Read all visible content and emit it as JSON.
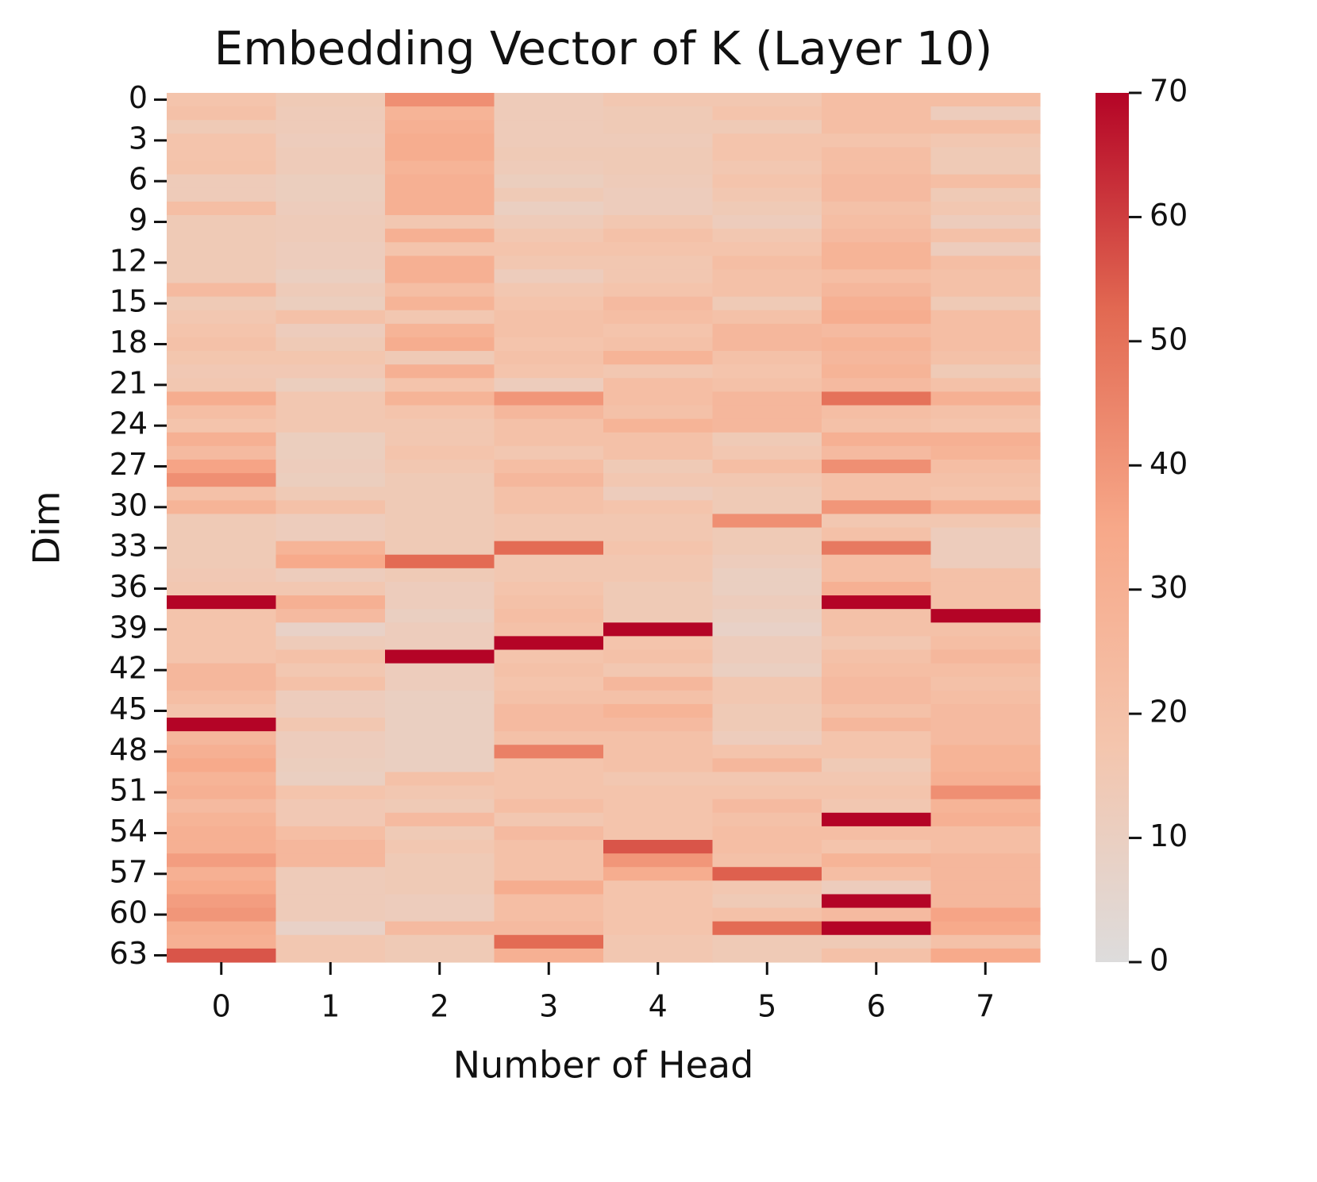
{
  "chart_data": {
    "type": "heatmap",
    "title": "Embedding Vector of K (Layer 10)",
    "x_label": "Number of Head",
    "y_label": "Dim",
    "x_categories": [
      0,
      1,
      2,
      3,
      4,
      5,
      6,
      7
    ],
    "y_categories": [
      0,
      null,
      null,
      3,
      null,
      null,
      6,
      null,
      null,
      9,
      null,
      null,
      12,
      null,
      null,
      15,
      null,
      null,
      18,
      null,
      null,
      21,
      null,
      null,
      24,
      null,
      null,
      27,
      null,
      null,
      30,
      null,
      null,
      33,
      null,
      null,
      36,
      null,
      null,
      39,
      null,
      null,
      42,
      null,
      null,
      45,
      null,
      null,
      48,
      null,
      null,
      51,
      null,
      null,
      54,
      null,
      null,
      57,
      null,
      null,
      60,
      null,
      null,
      63
    ],
    "values": [
      [
        18,
        20,
        14,
        18,
        18,
        19,
        13,
        13,
        22,
        14,
        14,
        14,
        14,
        14,
        24,
        14,
        16,
        18,
        20,
        17,
        15,
        16,
        32,
        22,
        18,
        30,
        24,
        36,
        42,
        20,
        28,
        14,
        14,
        14,
        14,
        15,
        16,
        70,
        18,
        18,
        18,
        18,
        26,
        26,
        22,
        18,
        70,
        26,
        30,
        34,
        28,
        30,
        24,
        28,
        30,
        30,
        38,
        30,
        34,
        38,
        40,
        32,
        30,
        56
      ],
      [
        14,
        13,
        13,
        12,
        13,
        13,
        11,
        11,
        12,
        13,
        13,
        12,
        12,
        10,
        13,
        11,
        20,
        12,
        14,
        17,
        15,
        11,
        16,
        16,
        16,
        11,
        11,
        12,
        11,
        14,
        20,
        12,
        12,
        28,
        34,
        12,
        16,
        30,
        24,
        8,
        13,
        20,
        16,
        20,
        12,
        12,
        16,
        12,
        12,
        11,
        10,
        18,
        15,
        15,
        22,
        26,
        26,
        13,
        13,
        13,
        13,
        8,
        16,
        16
      ],
      [
        42,
        28,
        30,
        32,
        32,
        28,
        30,
        30,
        30,
        16,
        30,
        18,
        30,
        30,
        22,
        28,
        16,
        28,
        32,
        14,
        30,
        18,
        28,
        18,
        16,
        16,
        18,
        16,
        14,
        14,
        14,
        14,
        14,
        14,
        52,
        14,
        12,
        12,
        10,
        12,
        12,
        70,
        12,
        12,
        10,
        10,
        10,
        10,
        10,
        10,
        20,
        16,
        14,
        24,
        14,
        16,
        14,
        14,
        14,
        12,
        12,
        24,
        14,
        14
      ],
      [
        13,
        13,
        13,
        13,
        14,
        13,
        11,
        14,
        10,
        13,
        16,
        18,
        16,
        12,
        16,
        18,
        20,
        20,
        18,
        20,
        18,
        12,
        40,
        26,
        20,
        20,
        16,
        22,
        26,
        20,
        20,
        16,
        16,
        52,
        16,
        16,
        18,
        20,
        22,
        20,
        70,
        18,
        20,
        18,
        20,
        24,
        24,
        20,
        46,
        18,
        18,
        18,
        22,
        16,
        24,
        20,
        20,
        20,
        32,
        22,
        22,
        24,
        52,
        30
      ],
      [
        16,
        14,
        14,
        13,
        14,
        14,
        13,
        12,
        12,
        16,
        20,
        18,
        16,
        16,
        18,
        24,
        22,
        18,
        20,
        28,
        16,
        22,
        22,
        20,
        28,
        20,
        20,
        14,
        16,
        12,
        18,
        16,
        16,
        18,
        16,
        16,
        14,
        14,
        14,
        70,
        18,
        20,
        16,
        26,
        20,
        28,
        24,
        20,
        20,
        20,
        16,
        18,
        18,
        18,
        18,
        56,
        40,
        32,
        18,
        18,
        18,
        18,
        16,
        16
      ],
      [
        16,
        18,
        14,
        18,
        18,
        16,
        18,
        16,
        14,
        12,
        16,
        18,
        22,
        20,
        20,
        14,
        20,
        26,
        26,
        20,
        18,
        20,
        26,
        26,
        26,
        14,
        16,
        22,
        16,
        14,
        14,
        42,
        14,
        14,
        12,
        10,
        10,
        12,
        10,
        8,
        12,
        12,
        10,
        16,
        16,
        14,
        14,
        12,
        18,
        26,
        16,
        18,
        24,
        20,
        22,
        22,
        20,
        54,
        16,
        14,
        20,
        52,
        14,
        14
      ],
      [
        22,
        22,
        22,
        18,
        22,
        22,
        24,
        24,
        20,
        22,
        24,
        28,
        28,
        22,
        26,
        30,
        32,
        24,
        28,
        26,
        28,
        24,
        50,
        22,
        20,
        30,
        24,
        42,
        20,
        20,
        40,
        16,
        20,
        48,
        22,
        22,
        30,
        70,
        20,
        20,
        16,
        20,
        22,
        24,
        24,
        20,
        26,
        18,
        18,
        14,
        16,
        18,
        16,
        70,
        22,
        18,
        28,
        22,
        12,
        70,
        24,
        70,
        14,
        20
      ],
      [
        22,
        12,
        22,
        16,
        14,
        14,
        22,
        14,
        16,
        12,
        20,
        12,
        22,
        20,
        20,
        14,
        22,
        22,
        22,
        20,
        14,
        20,
        30,
        20,
        18,
        30,
        28,
        22,
        20,
        18,
        30,
        16,
        12,
        12,
        12,
        20,
        20,
        20,
        70,
        20,
        22,
        26,
        22,
        20,
        22,
        24,
        24,
        24,
        28,
        28,
        30,
        42,
        28,
        30,
        22,
        22,
        26,
        26,
        26,
        26,
        36,
        34,
        20,
        34
      ]
    ],
    "colormap": [
      "#dddcdc",
      "#f4c5ad",
      "#f7a889",
      "#e26952",
      "#b40426"
    ],
    "clim": [
      0,
      70
    ],
    "colorbar_ticks": [
      0,
      10,
      20,
      30,
      40,
      50,
      60,
      70
    ]
  }
}
